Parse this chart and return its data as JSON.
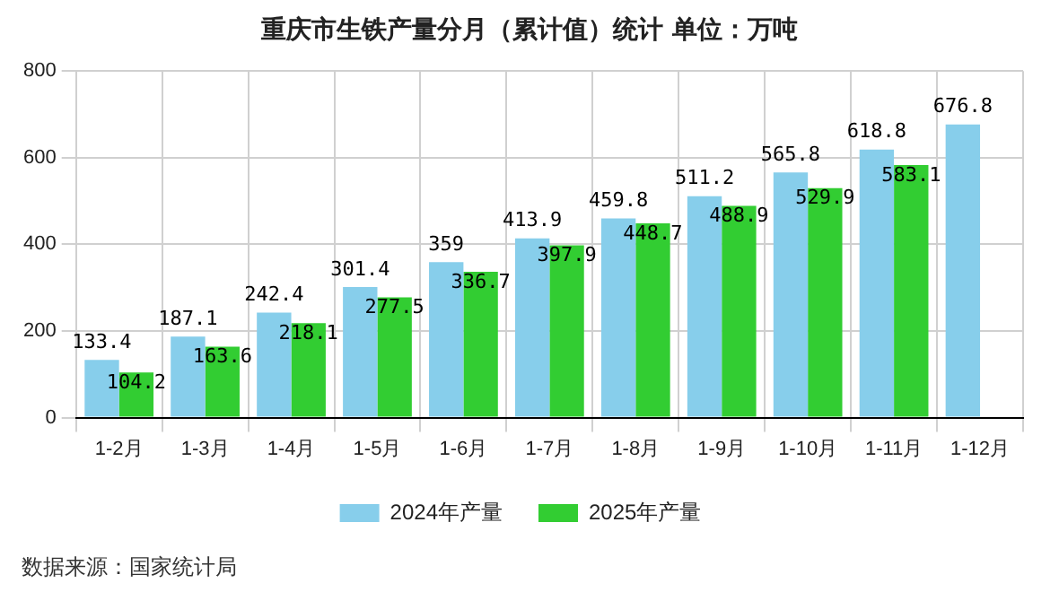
{
  "chart_data": {
    "type": "bar",
    "title": "重庆市生铁产量分月（累计值）统计  单位：万吨",
    "categories": [
      "1-2月",
      "1-3月",
      "1-4月",
      "1-5月",
      "1-6月",
      "1-7月",
      "1-8月",
      "1-9月",
      "1-10月",
      "1-11月",
      "1-12月"
    ],
    "series": [
      {
        "name": "2024年产量",
        "color": "#87ceeb",
        "values": [
          133.4,
          187.1,
          242.4,
          301.4,
          359,
          413.9,
          459.8,
          511.2,
          565.8,
          618.8,
          676.8
        ]
      },
      {
        "name": "2025年产量",
        "color": "#32cd32",
        "values": [
          104.2,
          163.6,
          218.1,
          277.5,
          336.7,
          397.9,
          448.7,
          488.9,
          529.9,
          583.1,
          null
        ]
      }
    ],
    "ylim": [
      0,
      800
    ],
    "yticks": [
      0,
      200,
      400,
      600,
      800
    ],
    "grid": true,
    "legend": "bottom",
    "data_labels": true,
    "annotations": [
      "数据来源：国家统计局"
    ]
  }
}
